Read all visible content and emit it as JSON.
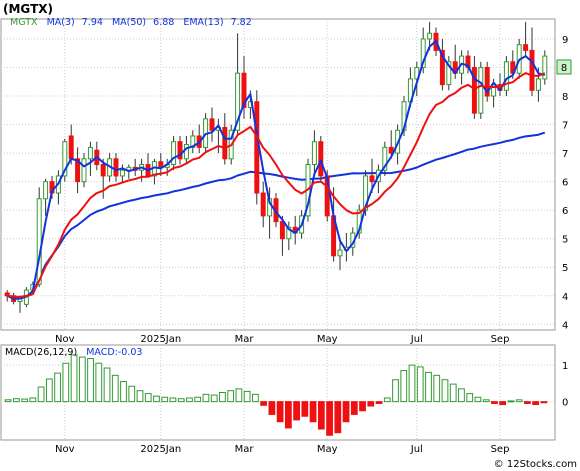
{
  "header": {
    "title": "(MGTX)"
  },
  "watermark": "© 12Stocks.com",
  "colors": {
    "up": "#339933",
    "down": "#ee1111",
    "ma_fast": "#ee1111",
    "ma_slow": "#1133dd",
    "ema": "#1133dd",
    "macd_bar": "#339933",
    "macd_neg": "#ee1111",
    "grid": "#cccccc"
  },
  "chart_data": [
    {
      "type": "candlestick",
      "title": "",
      "ticker": "MGTX",
      "legend": {
        "position": "top-left",
        "items": [
          {
            "name": "MGTX",
            "value": "",
            "color": "#339933"
          },
          {
            "name": "MA(3)",
            "value": "7.94",
            "color": "#1133dd"
          },
          {
            "name": "MA(50)",
            "value": "6.88",
            "color": "#1133dd"
          },
          {
            "name": "EMA(13)",
            "value": "7.82",
            "color": "#1133dd"
          }
        ]
      },
      "y_ticks": [
        "9",
        "8",
        "8",
        "7",
        "7",
        "6",
        "6",
        "5",
        "5",
        "4",
        "4"
      ],
      "y_tick_values": [
        9.0,
        8.5,
        8.0,
        7.5,
        7.0,
        6.5,
        6.0,
        5.5,
        5.0,
        4.5,
        4.0
      ],
      "ylim": [
        3.9,
        9.35
      ],
      "x_ticks": [
        "Nov",
        "2025Jan",
        "Mar",
        "May",
        "Jul",
        "Sep"
      ],
      "x_tick_index": [
        9,
        24,
        37,
        50,
        64,
        77
      ],
      "last_price_label": "8",
      "grid": true,
      "candles": [
        [
          4.55,
          4.6,
          4.4,
          4.5
        ],
        [
          4.5,
          4.55,
          4.35,
          4.4
        ],
        [
          4.4,
          4.5,
          4.2,
          4.45
        ],
        [
          4.35,
          4.65,
          4.3,
          4.6
        ],
        [
          4.6,
          4.75,
          4.55,
          4.7
        ],
        [
          4.7,
          6.4,
          4.65,
          6.2
        ],
        [
          6.2,
          6.55,
          5.9,
          6.5
        ],
        [
          6.5,
          6.6,
          6.2,
          6.3
        ],
        [
          6.3,
          6.7,
          6.1,
          6.6
        ],
        [
          6.6,
          7.25,
          6.5,
          7.2
        ],
        [
          7.3,
          7.5,
          6.8,
          6.9
        ],
        [
          6.9,
          7.1,
          6.3,
          6.5
        ],
        [
          6.5,
          7.0,
          6.4,
          6.9
        ],
        [
          6.9,
          7.2,
          6.6,
          7.1
        ],
        [
          7.05,
          7.2,
          6.7,
          6.8
        ],
        [
          6.8,
          6.9,
          6.2,
          6.6
        ],
        [
          6.6,
          7.0,
          6.5,
          6.9
        ],
        [
          6.9,
          7.0,
          6.5,
          6.6
        ],
        [
          6.6,
          6.8,
          6.5,
          6.7
        ],
        [
          6.7,
          6.8,
          6.55,
          6.75
        ],
        [
          6.75,
          6.9,
          6.6,
          6.7
        ],
        [
          6.7,
          6.9,
          6.5,
          6.8
        ],
        [
          6.8,
          7.0,
          6.6,
          6.6
        ],
        [
          6.6,
          6.9,
          6.45,
          6.85
        ],
        [
          6.85,
          7.0,
          6.6,
          6.75
        ],
        [
          6.75,
          6.9,
          6.6,
          6.8
        ],
        [
          6.8,
          7.3,
          6.7,
          7.2
        ],
        [
          7.2,
          7.3,
          6.8,
          6.9
        ],
        [
          6.9,
          7.3,
          6.8,
          7.15
        ],
        [
          7.1,
          7.4,
          7.0,
          7.3
        ],
        [
          7.3,
          7.5,
          7.0,
          7.1
        ],
        [
          7.1,
          7.7,
          7.0,
          7.6
        ],
        [
          7.6,
          7.8,
          7.2,
          7.4
        ],
        [
          7.4,
          7.6,
          7.0,
          7.45
        ],
        [
          7.45,
          7.7,
          6.8,
          6.9
        ],
        [
          6.9,
          7.5,
          6.8,
          7.4
        ],
        [
          7.4,
          9.1,
          7.3,
          8.4
        ],
        [
          8.4,
          8.7,
          7.6,
          7.8
        ],
        [
          7.8,
          8.1,
          7.6,
          7.9
        ],
        [
          7.9,
          8.1,
          6.1,
          6.3
        ],
        [
          6.3,
          6.5,
          5.7,
          5.9
        ],
        [
          5.9,
          6.4,
          5.5,
          6.2
        ],
        [
          6.2,
          6.3,
          5.7,
          5.8
        ],
        [
          5.8,
          5.9,
          5.2,
          5.5
        ],
        [
          5.5,
          5.8,
          5.3,
          5.7
        ],
        [
          5.7,
          5.9,
          5.4,
          5.6
        ],
        [
          5.6,
          6.0,
          5.5,
          5.9
        ],
        [
          5.9,
          6.9,
          5.8,
          6.8
        ],
        [
          6.8,
          7.4,
          6.6,
          7.2
        ],
        [
          7.2,
          7.3,
          6.5,
          6.6
        ],
        [
          6.6,
          6.7,
          5.8,
          5.9
        ],
        [
          5.9,
          6.4,
          5.1,
          5.2
        ],
        [
          5.2,
          5.5,
          4.95,
          5.3
        ],
        [
          5.3,
          5.6,
          5.1,
          5.35
        ],
        [
          5.35,
          5.7,
          5.2,
          5.6
        ],
        [
          5.6,
          6.1,
          5.5,
          6.0
        ],
        [
          6.0,
          6.7,
          5.9,
          6.6
        ],
        [
          6.6,
          6.9,
          6.3,
          6.5
        ],
        [
          6.5,
          6.8,
          6.3,
          6.7
        ],
        [
          6.7,
          7.2,
          6.6,
          7.1
        ],
        [
          7.1,
          7.4,
          6.9,
          7.0
        ],
        [
          7.0,
          7.5,
          6.8,
          7.4
        ],
        [
          7.4,
          8.0,
          7.3,
          7.9
        ],
        [
          7.9,
          8.5,
          7.8,
          8.3
        ],
        [
          8.3,
          8.6,
          8.0,
          8.5
        ],
        [
          8.5,
          9.2,
          8.4,
          9.0
        ],
        [
          9.0,
          9.3,
          8.8,
          9.1
        ],
        [
          9.1,
          9.2,
          8.7,
          8.8
        ],
        [
          8.8,
          9.0,
          8.1,
          8.2
        ],
        [
          8.2,
          8.7,
          8.1,
          8.6
        ],
        [
          8.6,
          8.9,
          8.3,
          8.4
        ],
        [
          8.4,
          8.8,
          8.2,
          8.7
        ],
        [
          8.7,
          8.8,
          8.4,
          8.5
        ],
        [
          8.5,
          8.7,
          7.6,
          7.7
        ],
        [
          7.7,
          8.6,
          7.6,
          8.5
        ],
        [
          8.5,
          8.6,
          7.9,
          8.0
        ],
        [
          8.0,
          8.3,
          7.8,
          8.2
        ],
        [
          8.2,
          8.4,
          8.0,
          8.1
        ],
        [
          8.1,
          8.7,
          8.0,
          8.6
        ],
        [
          8.6,
          8.8,
          8.3,
          8.4
        ],
        [
          8.4,
          9.0,
          8.3,
          8.9
        ],
        [
          8.9,
          9.3,
          8.7,
          8.8
        ],
        [
          8.8,
          9.2,
          8.0,
          8.1
        ],
        [
          8.1,
          8.5,
          7.9,
          8.3
        ],
        [
          8.3,
          8.8,
          8.2,
          8.7
        ]
      ]
    },
    {
      "type": "bar",
      "title": "MACD(26,12,9)",
      "legend": {
        "position": "top-left",
        "items": [
          {
            "name": "MACD(26,12,9)",
            "value": "",
            "color": "#000000"
          },
          {
            "name": "MACD",
            "value": "-0.03",
            "color": "#1133dd"
          }
        ]
      },
      "y_ticks": [
        "1",
        "0"
      ],
      "y_tick_values": [
        1,
        0
      ],
      "ylim": [
        -1.05,
        1.55
      ],
      "x_ticks": [
        "Nov",
        "2025Jan",
        "Mar",
        "May",
        "Jul",
        "Sep"
      ],
      "grid": true,
      "values": [
        0.05,
        0.08,
        0.07,
        0.1,
        0.4,
        0.62,
        0.78,
        1.05,
        1.28,
        1.22,
        1.18,
        1.05,
        0.92,
        0.72,
        0.55,
        0.42,
        0.3,
        0.22,
        0.15,
        0.12,
        0.1,
        0.08,
        0.1,
        0.12,
        0.2,
        0.18,
        0.25,
        0.3,
        0.35,
        0.28,
        0.2,
        -0.1,
        -0.35,
        -0.55,
        -0.72,
        -0.5,
        -0.4,
        -0.55,
        -0.75,
        -0.92,
        -0.85,
        -0.55,
        -0.35,
        -0.25,
        -0.12,
        -0.05,
        0.1,
        0.6,
        0.85,
        1.0,
        0.95,
        0.8,
        0.72,
        0.6,
        0.48,
        0.35,
        0.22,
        0.12,
        0.05,
        -0.05,
        -0.08,
        0.02,
        0.05,
        -0.05,
        -0.08,
        -0.03
      ]
    }
  ]
}
